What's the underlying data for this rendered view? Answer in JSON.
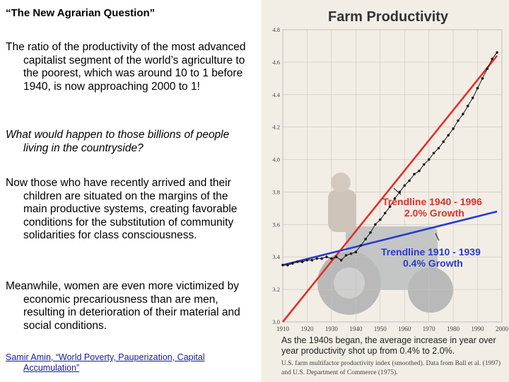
{
  "slide": {
    "title": "“The New Agrarian Question”",
    "paragraphs": [
      "The ratio of the productivity of the most advanced capitalist segment of the world’s agriculture to the poorest, which was around 10 to 1 before 1940, is now approaching 2000 to 1!",
      "What would happen to those billions of people living in the countryside?",
      "Now those who have recently arrived and their children are situated on the margins of the main productive systems, creating favorable conditions for the substitution of community solidarities for class consciousness.",
      "Meanwhile, women are even more victimized by economic precariousness than are men, resulting in deterioration of their material and social conditions."
    ],
    "citation": "Samir Amin, “World Poverty, Pauperization, Capital Accumulation”"
  },
  "chart_data": {
    "type": "line",
    "title": "Farm Productivity",
    "xlabel": "",
    "ylabel": "",
    "xlim": [
      1910,
      2000
    ],
    "ylim": [
      3.0,
      4.8
    ],
    "x_ticks": [
      "1910",
      "1920",
      "1930",
      "1940",
      "1950",
      "1960",
      "1970",
      "1980",
      "1990",
      "2000"
    ],
    "y_ticks": [
      "3.0",
      "3.2",
      "3.4",
      "3.6",
      "3.8",
      "4.0",
      "4.2",
      "4.4",
      "4.6",
      "4.8"
    ],
    "grid": true,
    "series": [
      {
        "color": "#1a1a1a",
        "x": [
          1910,
          1912,
          1914,
          1916,
          1918,
          1920,
          1922,
          1924,
          1926,
          1928,
          1930,
          1932,
          1934,
          1936,
          1938,
          1940,
          1942,
          1944,
          1946,
          1948,
          1950,
          1952,
          1954,
          1956,
          1958,
          1960,
          1962,
          1964,
          1966,
          1968,
          1970,
          1972,
          1974,
          1976,
          1978,
          1980,
          1982,
          1984,
          1986,
          1988,
          1990,
          1992,
          1994,
          1996,
          1998
        ],
        "y": [
          3.35,
          3.35,
          3.36,
          3.37,
          3.37,
          3.38,
          3.38,
          3.39,
          3.39,
          3.4,
          3.39,
          3.4,
          3.38,
          3.41,
          3.42,
          3.43,
          3.47,
          3.51,
          3.55,
          3.6,
          3.63,
          3.67,
          3.71,
          3.76,
          3.8,
          3.84,
          3.87,
          3.91,
          3.93,
          3.97,
          4.0,
          4.04,
          4.07,
          4.11,
          4.15,
          4.19,
          4.24,
          4.28,
          4.33,
          4.38,
          4.44,
          4.5,
          4.56,
          4.62,
          4.66
        ]
      },
      {
        "name": "Trendline 1940 - 1996 2.0% Growth",
        "color": "#e0302a",
        "x": [
          1910,
          1998
        ],
        "y": [
          3.0,
          4.64
        ]
      },
      {
        "name": "Trendline 1910 - 1939 0.4% Growth",
        "color": "#2a3ad0",
        "x": [
          1910,
          1998
        ],
        "y": [
          3.35,
          3.68
        ]
      }
    ],
    "annotations": [
      {
        "line1": "Trendline 1940 - 1996",
        "line2": "2.0% Growth",
        "color": "#e0302a"
      },
      {
        "line1": "Trendline 1910 - 1939",
        "line2": "0.4% Growth",
        "color": "#2a3ad0"
      }
    ],
    "caption": "As the 1940s began, the average increase in year over year productivity shot up from 0.4% to 2.0%.",
    "source": "U.S. farm multifactor productivity index (smoothed). Data from Ball et al. (1997) and U.S. Department of Commerce (1975)."
  }
}
